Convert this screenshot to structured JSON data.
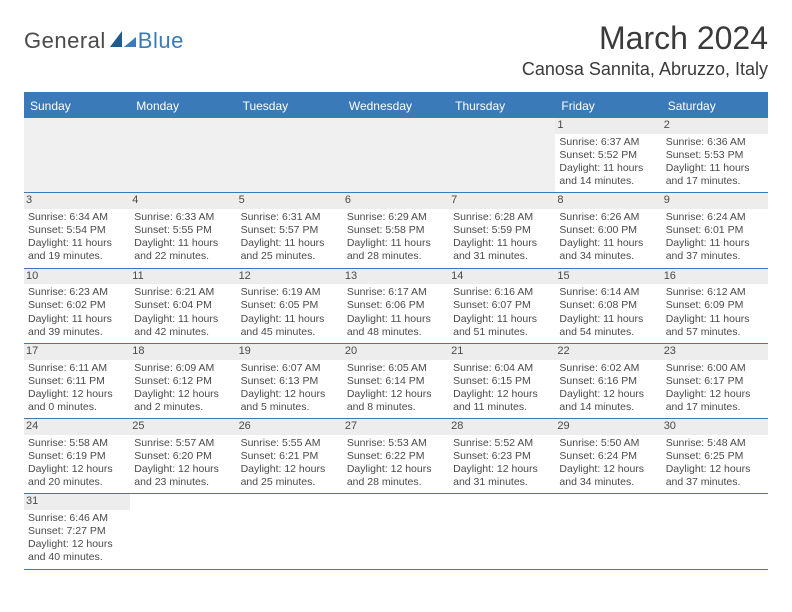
{
  "brand": {
    "part1": "General",
    "part2": "Blue"
  },
  "title": "March 2024",
  "location": "Canosa Sannita, Abruzzo, Italy",
  "colors": {
    "header_bg": "#3a7ab8",
    "header_text": "#ffffff",
    "border": "#3a7ab8",
    "datebar_bg": "#ededed",
    "empty_bg": "#f0f0f0",
    "body_text": "#4a4a4a"
  },
  "day_names": [
    "Sunday",
    "Monday",
    "Tuesday",
    "Wednesday",
    "Thursday",
    "Friday",
    "Saturday"
  ],
  "weeks": [
    [
      null,
      null,
      null,
      null,
      null,
      {
        "d": "1",
        "sr": "Sunrise: 6:37 AM",
        "ss": "Sunset: 5:52 PM",
        "dl1": "Daylight: 11 hours",
        "dl2": "and 14 minutes."
      },
      {
        "d": "2",
        "sr": "Sunrise: 6:36 AM",
        "ss": "Sunset: 5:53 PM",
        "dl1": "Daylight: 11 hours",
        "dl2": "and 17 minutes."
      }
    ],
    [
      {
        "d": "3",
        "sr": "Sunrise: 6:34 AM",
        "ss": "Sunset: 5:54 PM",
        "dl1": "Daylight: 11 hours",
        "dl2": "and 19 minutes."
      },
      {
        "d": "4",
        "sr": "Sunrise: 6:33 AM",
        "ss": "Sunset: 5:55 PM",
        "dl1": "Daylight: 11 hours",
        "dl2": "and 22 minutes."
      },
      {
        "d": "5",
        "sr": "Sunrise: 6:31 AM",
        "ss": "Sunset: 5:57 PM",
        "dl1": "Daylight: 11 hours",
        "dl2": "and 25 minutes."
      },
      {
        "d": "6",
        "sr": "Sunrise: 6:29 AM",
        "ss": "Sunset: 5:58 PM",
        "dl1": "Daylight: 11 hours",
        "dl2": "and 28 minutes."
      },
      {
        "d": "7",
        "sr": "Sunrise: 6:28 AM",
        "ss": "Sunset: 5:59 PM",
        "dl1": "Daylight: 11 hours",
        "dl2": "and 31 minutes."
      },
      {
        "d": "8",
        "sr": "Sunrise: 6:26 AM",
        "ss": "Sunset: 6:00 PM",
        "dl1": "Daylight: 11 hours",
        "dl2": "and 34 minutes."
      },
      {
        "d": "9",
        "sr": "Sunrise: 6:24 AM",
        "ss": "Sunset: 6:01 PM",
        "dl1": "Daylight: 11 hours",
        "dl2": "and 37 minutes."
      }
    ],
    [
      {
        "d": "10",
        "sr": "Sunrise: 6:23 AM",
        "ss": "Sunset: 6:02 PM",
        "dl1": "Daylight: 11 hours",
        "dl2": "and 39 minutes."
      },
      {
        "d": "11",
        "sr": "Sunrise: 6:21 AM",
        "ss": "Sunset: 6:04 PM",
        "dl1": "Daylight: 11 hours",
        "dl2": "and 42 minutes."
      },
      {
        "d": "12",
        "sr": "Sunrise: 6:19 AM",
        "ss": "Sunset: 6:05 PM",
        "dl1": "Daylight: 11 hours",
        "dl2": "and 45 minutes."
      },
      {
        "d": "13",
        "sr": "Sunrise: 6:17 AM",
        "ss": "Sunset: 6:06 PM",
        "dl1": "Daylight: 11 hours",
        "dl2": "and 48 minutes."
      },
      {
        "d": "14",
        "sr": "Sunrise: 6:16 AM",
        "ss": "Sunset: 6:07 PM",
        "dl1": "Daylight: 11 hours",
        "dl2": "and 51 minutes."
      },
      {
        "d": "15",
        "sr": "Sunrise: 6:14 AM",
        "ss": "Sunset: 6:08 PM",
        "dl1": "Daylight: 11 hours",
        "dl2": "and 54 minutes."
      },
      {
        "d": "16",
        "sr": "Sunrise: 6:12 AM",
        "ss": "Sunset: 6:09 PM",
        "dl1": "Daylight: 11 hours",
        "dl2": "and 57 minutes."
      }
    ],
    [
      {
        "d": "17",
        "sr": "Sunrise: 6:11 AM",
        "ss": "Sunset: 6:11 PM",
        "dl1": "Daylight: 12 hours",
        "dl2": "and 0 minutes."
      },
      {
        "d": "18",
        "sr": "Sunrise: 6:09 AM",
        "ss": "Sunset: 6:12 PM",
        "dl1": "Daylight: 12 hours",
        "dl2": "and 2 minutes."
      },
      {
        "d": "19",
        "sr": "Sunrise: 6:07 AM",
        "ss": "Sunset: 6:13 PM",
        "dl1": "Daylight: 12 hours",
        "dl2": "and 5 minutes."
      },
      {
        "d": "20",
        "sr": "Sunrise: 6:05 AM",
        "ss": "Sunset: 6:14 PM",
        "dl1": "Daylight: 12 hours",
        "dl2": "and 8 minutes."
      },
      {
        "d": "21",
        "sr": "Sunrise: 6:04 AM",
        "ss": "Sunset: 6:15 PM",
        "dl1": "Daylight: 12 hours",
        "dl2": "and 11 minutes."
      },
      {
        "d": "22",
        "sr": "Sunrise: 6:02 AM",
        "ss": "Sunset: 6:16 PM",
        "dl1": "Daylight: 12 hours",
        "dl2": "and 14 minutes."
      },
      {
        "d": "23",
        "sr": "Sunrise: 6:00 AM",
        "ss": "Sunset: 6:17 PM",
        "dl1": "Daylight: 12 hours",
        "dl2": "and 17 minutes."
      }
    ],
    [
      {
        "d": "24",
        "sr": "Sunrise: 5:58 AM",
        "ss": "Sunset: 6:19 PM",
        "dl1": "Daylight: 12 hours",
        "dl2": "and 20 minutes."
      },
      {
        "d": "25",
        "sr": "Sunrise: 5:57 AM",
        "ss": "Sunset: 6:20 PM",
        "dl1": "Daylight: 12 hours",
        "dl2": "and 23 minutes."
      },
      {
        "d": "26",
        "sr": "Sunrise: 5:55 AM",
        "ss": "Sunset: 6:21 PM",
        "dl1": "Daylight: 12 hours",
        "dl2": "and 25 minutes."
      },
      {
        "d": "27",
        "sr": "Sunrise: 5:53 AM",
        "ss": "Sunset: 6:22 PM",
        "dl1": "Daylight: 12 hours",
        "dl2": "and 28 minutes."
      },
      {
        "d": "28",
        "sr": "Sunrise: 5:52 AM",
        "ss": "Sunset: 6:23 PM",
        "dl1": "Daylight: 12 hours",
        "dl2": "and 31 minutes."
      },
      {
        "d": "29",
        "sr": "Sunrise: 5:50 AM",
        "ss": "Sunset: 6:24 PM",
        "dl1": "Daylight: 12 hours",
        "dl2": "and 34 minutes."
      },
      {
        "d": "30",
        "sr": "Sunrise: 5:48 AM",
        "ss": "Sunset: 6:25 PM",
        "dl1": "Daylight: 12 hours",
        "dl2": "and 37 minutes."
      }
    ],
    [
      {
        "d": "31",
        "sr": "Sunrise: 6:46 AM",
        "ss": "Sunset: 7:27 PM",
        "dl1": "Daylight: 12 hours",
        "dl2": "and 40 minutes."
      },
      null,
      null,
      null,
      null,
      null,
      null
    ]
  ]
}
